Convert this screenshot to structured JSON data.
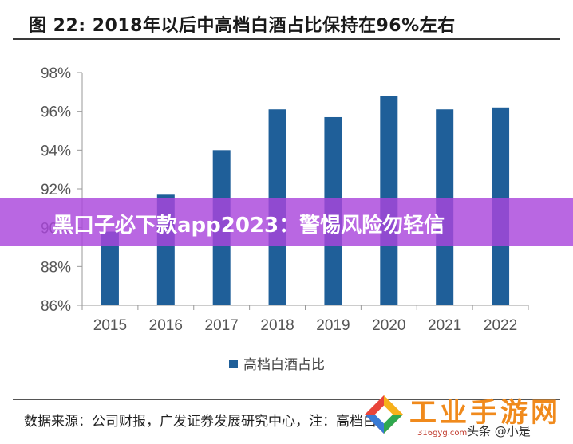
{
  "chart_data": {
    "type": "bar",
    "title": "图  22:  2018年以后中高档白酒占比保持在96%左右",
    "categories": [
      "2015",
      "2016",
      "2017",
      "2018",
      "2019",
      "2020",
      "2021",
      "2022"
    ],
    "series": [
      {
        "name": "高档白酒占比",
        "values": [
          89.8,
          91.7,
          94.0,
          96.1,
          95.7,
          96.8,
          96.1,
          96.2
        ],
        "color": "#1f5f99"
      }
    ],
    "ylim": [
      86,
      98
    ],
    "yticks": [
      86,
      88,
      90,
      92,
      94,
      96,
      98
    ],
    "ytick_labels": [
      "86%",
      "88%",
      "90%",
      "92%",
      "94%",
      "96%",
      "98%"
    ],
    "xlabel": "",
    "ylabel": "",
    "grid": false,
    "legend_position": "bottom"
  },
  "source": "数据来源：公司财报，广发证券发展研究中心，注：高档白酒",
  "overlay": {
    "banner_text": "黑口子必下款app2023：警惕风险勿轻信",
    "banner_color": "#aa46dc"
  },
  "watermark": {
    "name": "工业手游网",
    "url": "316gyg.com",
    "author": "头条 @小是"
  },
  "colors": {
    "bar": "#1f5f99",
    "axis": "#999999",
    "tick_text": "#555555"
  }
}
